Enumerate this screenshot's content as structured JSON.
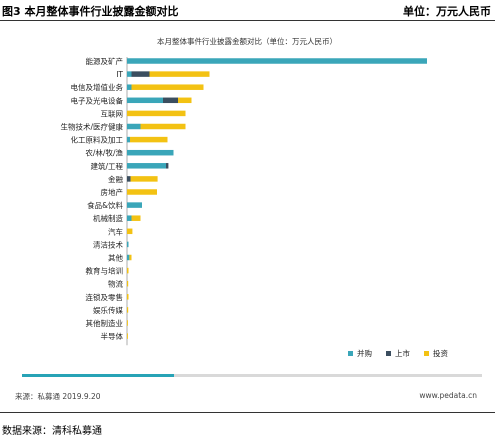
{
  "header": {
    "figure_title": "图3 本月整体事件行业披露金额对比",
    "unit": "单位：万元人民币"
  },
  "footer": {
    "source_left": "来源：私募通 2019.9.20",
    "site": "www.pedata.cn",
    "data_source": "数据来源：清科私募通"
  },
  "progress": {
    "fraction": 0.33,
    "fill_color": "#27a3b6"
  },
  "chart_data": {
    "type": "bar",
    "orientation": "horizontal",
    "stacked": true,
    "title": "本月整体事件行业披露金额对比（单位：万元人民币）",
    "xlabel": "",
    "ylabel": "",
    "xlim": [
      0,
      100
    ],
    "grid": false,
    "legend_position": "bottom-right",
    "categories": [
      "能源及矿产",
      "IT",
      "电信及增值业务",
      "电子及光电设备",
      "互联网",
      "生物技术/医疗健康",
      "化工原料及加工",
      "农/林/牧/渔",
      "建筑/工程",
      "金融",
      "房地产",
      "食品&饮料",
      "机械制造",
      "汽车",
      "清洁技术",
      "其他",
      "教育与培训",
      "物流",
      "连锁及零售",
      "娱乐传媒",
      "其他制造业",
      "半导体"
    ],
    "series": [
      {
        "name": "并购",
        "color": "#3aa6b9",
        "values": [
          100,
          1.5,
          1.5,
          12,
          0,
          4.5,
          1,
          15.5,
          13,
          0,
          0,
          5,
          1.5,
          0,
          0.5,
          0.8,
          0,
          0,
          0,
          0,
          0,
          0
        ]
      },
      {
        "name": "上市",
        "color": "#3b4e5f",
        "values": [
          0,
          6,
          0,
          5,
          0,
          0,
          0,
          0,
          0.8,
          1.2,
          0,
          0,
          0,
          0,
          0,
          0,
          0,
          0,
          0,
          0,
          0,
          0
        ]
      },
      {
        "name": "投资",
        "color": "#f3c213",
        "values": [
          0,
          20,
          24,
          4.5,
          19.5,
          15,
          12.5,
          0,
          0,
          9,
          10,
          0,
          3,
          1.8,
          0,
          0.7,
          0.5,
          0.4,
          0.5,
          0.4,
          0.3,
          0.3
        ]
      }
    ]
  }
}
